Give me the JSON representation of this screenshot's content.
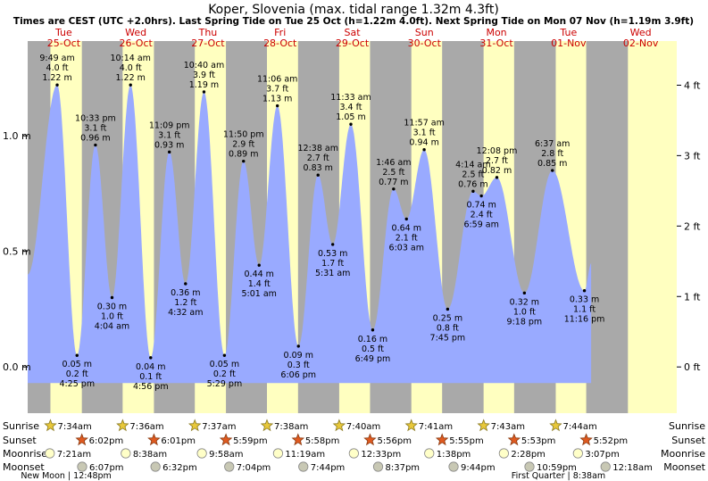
{
  "chart_data": {
    "type": "line",
    "title": "Koper, Slovenia (max. tidal range 1.32m 4.3ft)",
    "subtitle": "Times are CEST (UTC +2.0hrs). Last Spring Tide on Tue 25 Oct (h=1.22m 4.0ft). Next Spring Tide on Mon 07 Nov (h=1.19m 3.9ft)",
    "x_range_hours": [
      0,
      216
    ],
    "ylim_m": [
      -0.2,
      1.41
    ],
    "left_ticks": [
      {
        "v": 1.0,
        "label": "1.0 m"
      },
      {
        "v": 0.5,
        "label": "0.5 m"
      },
      {
        "v": 0.0,
        "label": "0.0 m"
      }
    ],
    "right_ticks": [
      {
        "v": 1.219,
        "label": "4 ft"
      },
      {
        "v": 0.9144,
        "label": "3 ft"
      },
      {
        "v": 0.6096,
        "label": "2 ft"
      },
      {
        "v": 0.3048,
        "label": "1 ft"
      },
      {
        "v": 0.0,
        "label": "0 ft"
      }
    ],
    "days": [
      {
        "dow": "Tue",
        "date": "25-Oct"
      },
      {
        "dow": "Wed",
        "date": "26-Oct"
      },
      {
        "dow": "Thu",
        "date": "27-Oct"
      },
      {
        "dow": "Fri",
        "date": "28-Oct"
      },
      {
        "dow": "Sat",
        "date": "29-Oct"
      },
      {
        "dow": "Sun",
        "date": "30-Oct"
      },
      {
        "dow": "Mon",
        "date": "31-Oct"
      },
      {
        "dow": "Tue",
        "date": "01-Nov"
      },
      {
        "dow": "Wed",
        "date": "02-Nov"
      }
    ],
    "daylight": [
      {
        "rise": 7.57,
        "set": 18.03
      },
      {
        "rise": 31.6,
        "set": 42.02
      },
      {
        "rise": 55.62,
        "set": 65.98
      },
      {
        "rise": 79.63,
        "set": 89.97
      },
      {
        "rise": 103.67,
        "set": 113.93
      },
      {
        "rise": 127.68,
        "set": 137.92
      },
      {
        "rise": 151.72,
        "set": 161.88
      },
      {
        "rise": 175.73,
        "set": 185.87
      },
      {
        "rise": 199.75,
        "set": 216
      }
    ],
    "tides": [
      {
        "h": 9.82,
        "m": 1.22,
        "ft": "4.0 ft",
        "m_label": "1.22 m",
        "time": "9:49 am",
        "high": true
      },
      {
        "h": 16.42,
        "m": 0.05,
        "ft": "0.2 ft",
        "m_label": "0.05 m",
        "time": "4:25 pm",
        "high": false
      },
      {
        "h": 22.55,
        "m": 0.96,
        "ft": "3.1 ft",
        "m_label": "0.96 m",
        "time": "10:33 pm",
        "high": true
      },
      {
        "h": 28.07,
        "m": 0.3,
        "ft": "1.0 ft",
        "m_label": "0.30 m",
        "time": "4:04 am",
        "high": false
      },
      {
        "h": 34.23,
        "m": 1.22,
        "ft": "4.0 ft",
        "m_label": "1.22 m",
        "time": "10:14 am",
        "high": true
      },
      {
        "h": 40.93,
        "m": 0.04,
        "ft": "0.1 ft",
        "m_label": "0.04 m",
        "time": "4:56 pm",
        "high": false
      },
      {
        "h": 47.15,
        "m": 0.93,
        "ft": "3.1 ft",
        "m_label": "0.93 m",
        "time": "11:09 pm",
        "high": true
      },
      {
        "h": 52.53,
        "m": 0.36,
        "ft": "1.2 ft",
        "m_label": "0.36 m",
        "time": "4:32 am",
        "high": false
      },
      {
        "h": 58.67,
        "m": 1.19,
        "ft": "3.9 ft",
        "m_label": "1.19 m",
        "time": "10:40 am",
        "high": true
      },
      {
        "h": 65.48,
        "m": 0.05,
        "ft": "0.2 ft",
        "m_label": "0.05 m",
        "time": "5:29 pm",
        "high": false
      },
      {
        "h": 71.83,
        "m": 0.89,
        "ft": "2.9 ft",
        "m_label": "0.89 m",
        "time": "11:50 pm",
        "high": true
      },
      {
        "h": 77.02,
        "m": 0.44,
        "ft": "1.4 ft",
        "m_label": "0.44 m",
        "time": "5:01 am",
        "high": false
      },
      {
        "h": 83.1,
        "m": 1.13,
        "ft": "3.7 ft",
        "m_label": "1.13 m",
        "time": "11:06 am",
        "high": true
      },
      {
        "h": 90.1,
        "m": 0.09,
        "ft": "0.3 ft",
        "m_label": "0.09 m",
        "time": "6:06 pm",
        "high": false
      },
      {
        "h": 96.63,
        "m": 0.83,
        "ft": "2.7 ft",
        "m_label": "0.83 m",
        "time": "12:38 am",
        "high": true
      },
      {
        "h": 101.52,
        "m": 0.53,
        "ft": "1.7 ft",
        "m_label": "0.53 m",
        "time": "5:31 am",
        "high": false
      },
      {
        "h": 107.55,
        "m": 1.05,
        "ft": "3.4 ft",
        "m_label": "1.05 m",
        "time": "11:33 am",
        "high": true
      },
      {
        "h": 114.82,
        "m": 0.16,
        "ft": "0.5 ft",
        "m_label": "0.16 m",
        "time": "6:49 pm",
        "high": false
      },
      {
        "h": 121.77,
        "m": 0.77,
        "ft": "2.5 ft",
        "m_label": "0.77 m",
        "time": "1:46 am",
        "high": true
      },
      {
        "h": 126.05,
        "m": 0.64,
        "ft": "2.1 ft",
        "m_label": "0.64 m",
        "time": "6:03 am",
        "high": false
      },
      {
        "h": 131.95,
        "m": 0.94,
        "ft": "3.1 ft",
        "m_label": "0.94 m",
        "time": "11:57 am",
        "high": true
      },
      {
        "h": 139.75,
        "m": 0.25,
        "ft": "0.8 ft",
        "m_label": "0.25 m",
        "time": "7:45 pm",
        "high": false
      },
      {
        "h": 148.23,
        "m": 0.76,
        "ft": "2.5 ft",
        "m_label": "0.76 m",
        "time": "4:14 am",
        "high": true
      },
      {
        "h": 150.98,
        "m": 0.74,
        "ft": "2.4 ft",
        "m_label": "0.74 m",
        "time": "6:59 am",
        "high": false
      },
      {
        "h": 156.13,
        "m": 0.82,
        "ft": "2.7 ft",
        "m_label": "0.82 m",
        "time": "12:08 pm",
        "high": true
      },
      {
        "h": 165.3,
        "m": 0.32,
        "ft": "1.0 ft",
        "m_label": "0.32 m",
        "time": "9:18 pm",
        "high": false
      },
      {
        "h": 174.62,
        "m": 0.85,
        "ft": "2.8 ft",
        "m_label": "0.85 m",
        "time": "6:37 am",
        "high": true
      },
      {
        "h": 185.27,
        "m": 0.33,
        "ft": "1.1 ft",
        "m_label": "0.33 m",
        "time": "11:16 pm",
        "high": false
      }
    ],
    "curve_start_m": 0.4,
    "curve_end_m": 0.45,
    "curve_end_h": 187.6,
    "row_labels": [
      "Sunrise",
      "Sunset",
      "Moonrise",
      "Moonset"
    ],
    "sunrise": [
      {
        "h": 7.57,
        "t": "7:34am"
      },
      {
        "h": 31.6,
        "t": "7:36am"
      },
      {
        "h": 55.62,
        "t": "7:37am"
      },
      {
        "h": 79.63,
        "t": "7:38am"
      },
      {
        "h": 103.67,
        "t": "7:40am"
      },
      {
        "h": 127.68,
        "t": "7:41am"
      },
      {
        "h": 151.72,
        "t": "7:43am"
      },
      {
        "h": 175.73,
        "t": "7:44am"
      }
    ],
    "sunset": [
      {
        "h": 18.03,
        "t": "6:02pm"
      },
      {
        "h": 42.02,
        "t": "6:01pm"
      },
      {
        "h": 65.98,
        "t": "5:59pm"
      },
      {
        "h": 89.97,
        "t": "5:58pm"
      },
      {
        "h": 113.93,
        "t": "5:56pm"
      },
      {
        "h": 137.92,
        "t": "5:55pm"
      },
      {
        "h": 161.88,
        "t": "5:53pm"
      },
      {
        "h": 185.87,
        "t": "5:52pm"
      }
    ],
    "moonrise": [
      {
        "h": 7.35,
        "t": "7:21am"
      },
      {
        "h": 32.63,
        "t": "8:38am"
      },
      {
        "h": 57.97,
        "t": "9:58am"
      },
      {
        "h": 83.32,
        "t": "11:19am"
      },
      {
        "h": 108.55,
        "t": "12:33pm"
      },
      {
        "h": 133.63,
        "t": "1:38pm"
      },
      {
        "h": 158.47,
        "t": "2:28pm"
      },
      {
        "h": 183.12,
        "t": "3:07pm"
      }
    ],
    "moonset": [
      {
        "h": 18.12,
        "t": "6:07pm"
      },
      {
        "h": 42.53,
        "t": "6:32pm"
      },
      {
        "h": 67.07,
        "t": "7:04pm"
      },
      {
        "h": 91.73,
        "t": "7:44pm"
      },
      {
        "h": 116.62,
        "t": "8:37pm"
      },
      {
        "h": 141.73,
        "t": "9:44pm"
      },
      {
        "h": 166.98,
        "t": "10:59pm"
      },
      {
        "h": 192.3,
        "t": "12:18am"
      }
    ],
    "moon_phases": [
      {
        "label": "New Moon | 12:48pm",
        "h": 12.8
      },
      {
        "label": "First Quarter | 8:38am",
        "h": 176.63
      }
    ]
  }
}
